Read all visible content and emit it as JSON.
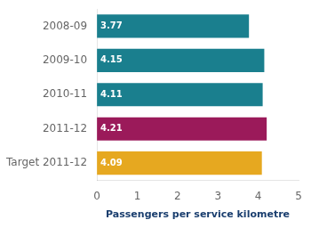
{
  "chart_data": {
    "type": "bar",
    "orientation": "horizontal",
    "categories": [
      "2008-09",
      "2009-10",
      "2010-11",
      "2011-12",
      "Target 2011-12"
    ],
    "values": [
      3.77,
      4.15,
      4.11,
      4.21,
      4.09
    ],
    "colors": [
      "#1a7f8e",
      "#1a7f8e",
      "#1a7f8e",
      "#9b1a5a",
      "#e6a820"
    ],
    "xlabel": "Passengers per service kilometre",
    "xlim": [
      0,
      5
    ],
    "xticks": [
      0,
      1,
      2,
      3,
      4,
      5
    ],
    "data_labels": true,
    "grid": false
  }
}
